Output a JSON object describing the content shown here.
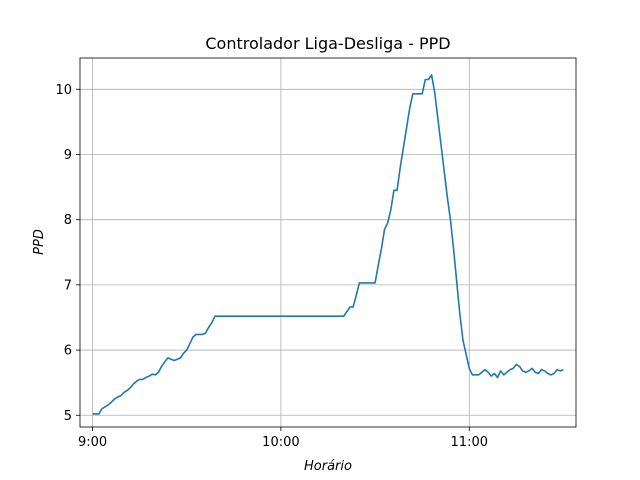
{
  "chart_data": {
    "type": "line",
    "title": "Controlador Liga-Desliga - PPD",
    "xlabel": "Horário",
    "ylabel": "PPD",
    "x_unit": "time (h:mm)",
    "xlim": [
      "8:56",
      "11:34"
    ],
    "ylim": [
      4.82,
      10.48
    ],
    "x_ticks": [
      "9:00",
      "10:00",
      "11:00"
    ],
    "y_ticks": [
      5,
      6,
      7,
      8,
      9,
      10
    ],
    "grid": true,
    "series": [
      {
        "color": "#1f77b4",
        "x": [
          "9:00",
          "9:02",
          "9:03",
          "9:04",
          "9:05",
          "9:06",
          "9:07",
          "9:08",
          "9:09",
          "9:10",
          "9:11",
          "9:12",
          "9:13",
          "9:14",
          "9:15",
          "9:16",
          "9:17",
          "9:18",
          "9:19",
          "9:20",
          "9:21",
          "9:22",
          "9:23",
          "9:24",
          "9:25",
          "9:26",
          "9:27",
          "9:28",
          "9:29",
          "9:30",
          "9:31",
          "9:32",
          "9:33",
          "9:34",
          "9:35",
          "9:36",
          "9:37",
          "9:38",
          "9:39",
          "9:40",
          "9:41",
          "9:42",
          "9:43",
          "9:44",
          "9:45",
          "9:46",
          "9:47",
          "9:48",
          "9:49",
          "9:50",
          "9:51",
          "9:52",
          "9:53",
          "9:54",
          "9:55",
          "9:56",
          "9:57",
          "9:58",
          "10:00",
          "10:05",
          "10:10",
          "10:15",
          "10:20",
          "10:22",
          "10:23",
          "10:24",
          "10:25",
          "10:26",
          "10:28",
          "10:30",
          "10:31",
          "10:32",
          "10:33",
          "10:34",
          "10:35",
          "10:36",
          "10:37",
          "10:38",
          "10:39",
          "10:40",
          "10:41",
          "10:42",
          "10:43",
          "10:44",
          "10:45",
          "10:46",
          "10:47",
          "10:48",
          "10:49",
          "10:50",
          "10:51",
          "10:52",
          "10:53",
          "10:54",
          "10:55",
          "10:56",
          "10:57",
          "10:58",
          "11:00",
          "11:01",
          "11:02",
          "11:03",
          "11:04",
          "11:05",
          "11:06",
          "11:07",
          "11:08",
          "11:09",
          "11:10",
          "11:11",
          "11:12",
          "11:13",
          "11:14",
          "11:15",
          "11:16",
          "11:17",
          "11:18",
          "11:19",
          "11:20",
          "11:21",
          "11:22",
          "11:23",
          "11:24",
          "11:25",
          "11:26",
          "11:27",
          "11:28",
          "11:29",
          "11:30"
        ],
        "y": [
          5.02,
          5.02,
          5.1,
          5.13,
          5.16,
          5.2,
          5.25,
          5.28,
          5.3,
          5.35,
          5.38,
          5.42,
          5.48,
          5.52,
          5.55,
          5.55,
          5.58,
          5.6,
          5.63,
          5.62,
          5.66,
          5.75,
          5.82,
          5.88,
          5.86,
          5.84,
          5.86,
          5.88,
          5.95,
          6.0,
          6.1,
          6.2,
          6.24,
          6.24,
          6.24,
          6.26,
          6.35,
          6.42,
          6.52,
          6.52,
          6.52,
          6.52,
          6.52,
          6.52,
          6.52,
          6.52,
          6.52,
          6.52,
          6.52,
          6.52,
          6.52,
          6.52,
          6.52,
          6.52,
          6.52,
          6.52,
          6.52,
          6.52,
          6.52,
          6.52,
          6.52,
          6.52,
          6.52,
          6.66,
          6.66,
          6.84,
          7.03,
          7.03,
          7.03,
          7.03,
          7.3,
          7.55,
          7.85,
          7.95,
          8.15,
          8.45,
          8.45,
          8.8,
          9.1,
          9.4,
          9.7,
          9.93,
          9.93,
          9.93,
          9.93,
          10.15,
          10.15,
          10.22,
          9.95,
          9.55,
          9.15,
          8.75,
          8.35,
          8.0,
          7.55,
          7.05,
          6.55,
          6.15,
          5.72,
          5.62,
          5.62,
          5.62,
          5.66,
          5.7,
          5.66,
          5.6,
          5.64,
          5.58,
          5.68,
          5.62,
          5.66,
          5.7,
          5.72,
          5.78,
          5.75,
          5.68,
          5.66,
          5.68,
          5.72,
          5.66,
          5.64,
          5.7,
          5.68,
          5.64,
          5.62,
          5.64,
          5.7,
          5.68,
          5.7
        ]
      }
    ]
  }
}
